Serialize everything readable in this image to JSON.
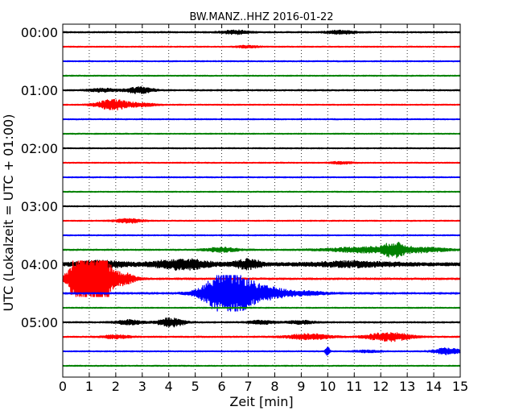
{
  "chart_data": {
    "type": "line",
    "title": "BW.MANZ..HHZ 2016-01-22",
    "xlabel": "Zeit  [min]",
    "ylabel": "UTC (Lokalzeit = UTC + 01:00)",
    "xlim": [
      0,
      15
    ],
    "x_ticks": [
      0,
      1,
      2,
      3,
      4,
      5,
      6,
      7,
      8,
      9,
      10,
      11,
      12,
      13,
      14,
      15
    ],
    "y_tick_labels": [
      "00:00",
      "01:00",
      "02:00",
      "03:00",
      "04:00",
      "05:00"
    ],
    "grid": "vertical dotted at each minute",
    "trace_colors": [
      "#000000",
      "#ff0000",
      "#0000ff",
      "#008000"
    ],
    "traces": [
      {
        "start": "00:00",
        "color": "#000000",
        "base_amp": 0.12,
        "events": [
          [
            6.5,
            0.35,
            0.5
          ],
          [
            10.5,
            0.3,
            0.5
          ]
        ]
      },
      {
        "start": "00:15",
        "color": "#ff0000",
        "base_amp": 0.1,
        "events": [
          [
            7.0,
            0.2,
            0.4
          ]
        ]
      },
      {
        "start": "00:30",
        "color": "#0000ff",
        "base_amp": 0.1,
        "events": []
      },
      {
        "start": "00:45",
        "color": "#008000",
        "base_amp": 0.1,
        "events": []
      },
      {
        "start": "01:00",
        "color": "#000000",
        "base_amp": 0.12,
        "events": [
          [
            2.9,
            0.6,
            0.5
          ],
          [
            1.5,
            0.3,
            0.5
          ]
        ]
      },
      {
        "start": "01:15",
        "color": "#ff0000",
        "base_amp": 0.1,
        "events": [
          [
            1.9,
            1.0,
            0.6
          ],
          [
            3.0,
            0.3,
            0.5
          ]
        ]
      },
      {
        "start": "01:30",
        "color": "#0000ff",
        "base_amp": 0.1,
        "events": []
      },
      {
        "start": "01:45",
        "color": "#008000",
        "base_amp": 0.1,
        "events": []
      },
      {
        "start": "02:00",
        "color": "#000000",
        "base_amp": 0.1,
        "events": []
      },
      {
        "start": "02:15",
        "color": "#ff0000",
        "base_amp": 0.1,
        "events": [
          [
            10.5,
            0.2,
            0.4
          ]
        ]
      },
      {
        "start": "02:30",
        "color": "#0000ff",
        "base_amp": 0.1,
        "events": []
      },
      {
        "start": "02:45",
        "color": "#008000",
        "base_amp": 0.1,
        "events": []
      },
      {
        "start": "03:00",
        "color": "#000000",
        "base_amp": 0.1,
        "events": []
      },
      {
        "start": "03:15",
        "color": "#ff0000",
        "base_amp": 0.1,
        "events": [
          [
            2.5,
            0.4,
            0.5
          ]
        ]
      },
      {
        "start": "03:30",
        "color": "#0000ff",
        "base_amp": 0.1,
        "events": []
      },
      {
        "start": "03:45",
        "color": "#008000",
        "base_amp": 0.12,
        "events": [
          [
            6.0,
            0.4,
            0.6
          ],
          [
            11.5,
            0.5,
            1.5
          ],
          [
            12.5,
            1.0,
            0.4
          ],
          [
            13.5,
            0.4,
            1.0
          ]
        ]
      },
      {
        "start": "04:00",
        "color": "#000000",
        "base_amp": 0.3,
        "events": [
          [
            4.5,
            0.9,
            1.0
          ],
          [
            7.0,
            0.8,
            0.5
          ],
          [
            1.5,
            0.5,
            1.0
          ],
          [
            11.0,
            0.4,
            1.5
          ]
        ]
      },
      {
        "start": "04:15",
        "color": "#ff0000",
        "base_amp": 0.15,
        "events": [
          [
            0.6,
            4.0,
            0.4
          ],
          [
            1.1,
            3.5,
            0.5
          ],
          [
            1.5,
            4.5,
            0.3
          ],
          [
            2.2,
            1.2,
            0.5
          ]
        ]
      },
      {
        "start": "04:30",
        "color": "#0000ff",
        "base_amp": 0.15,
        "events": [
          [
            6.1,
            4.0,
            0.8
          ],
          [
            7.0,
            1.5,
            0.5
          ],
          [
            7.8,
            1.0,
            0.6
          ],
          [
            9.0,
            0.4,
            0.8
          ]
        ]
      },
      {
        "start": "04:45",
        "color": "#008000",
        "base_amp": 0.1,
        "events": []
      },
      {
        "start": "05:00",
        "color": "#000000",
        "base_amp": 0.12,
        "events": [
          [
            4.1,
            0.8,
            0.5
          ],
          [
            2.5,
            0.4,
            0.5
          ],
          [
            7.5,
            0.3,
            0.5
          ],
          [
            9.0,
            0.3,
            0.5
          ]
        ]
      },
      {
        "start": "05:15",
        "color": "#ff0000",
        "base_amp": 0.12,
        "events": [
          [
            12.3,
            0.8,
            0.8
          ],
          [
            9.3,
            0.5,
            0.8
          ],
          [
            2.0,
            0.3,
            0.5
          ]
        ]
      },
      {
        "start": "05:30",
        "color": "#0000ff",
        "base_amp": 0.1,
        "events": [
          [
            10.0,
            1.0,
            0.08
          ],
          [
            14.5,
            0.6,
            0.5
          ],
          [
            11.5,
            0.2,
            0.5
          ]
        ]
      },
      {
        "start": "05:45",
        "color": "#008000",
        "base_amp": 0.1,
        "events": []
      }
    ]
  }
}
